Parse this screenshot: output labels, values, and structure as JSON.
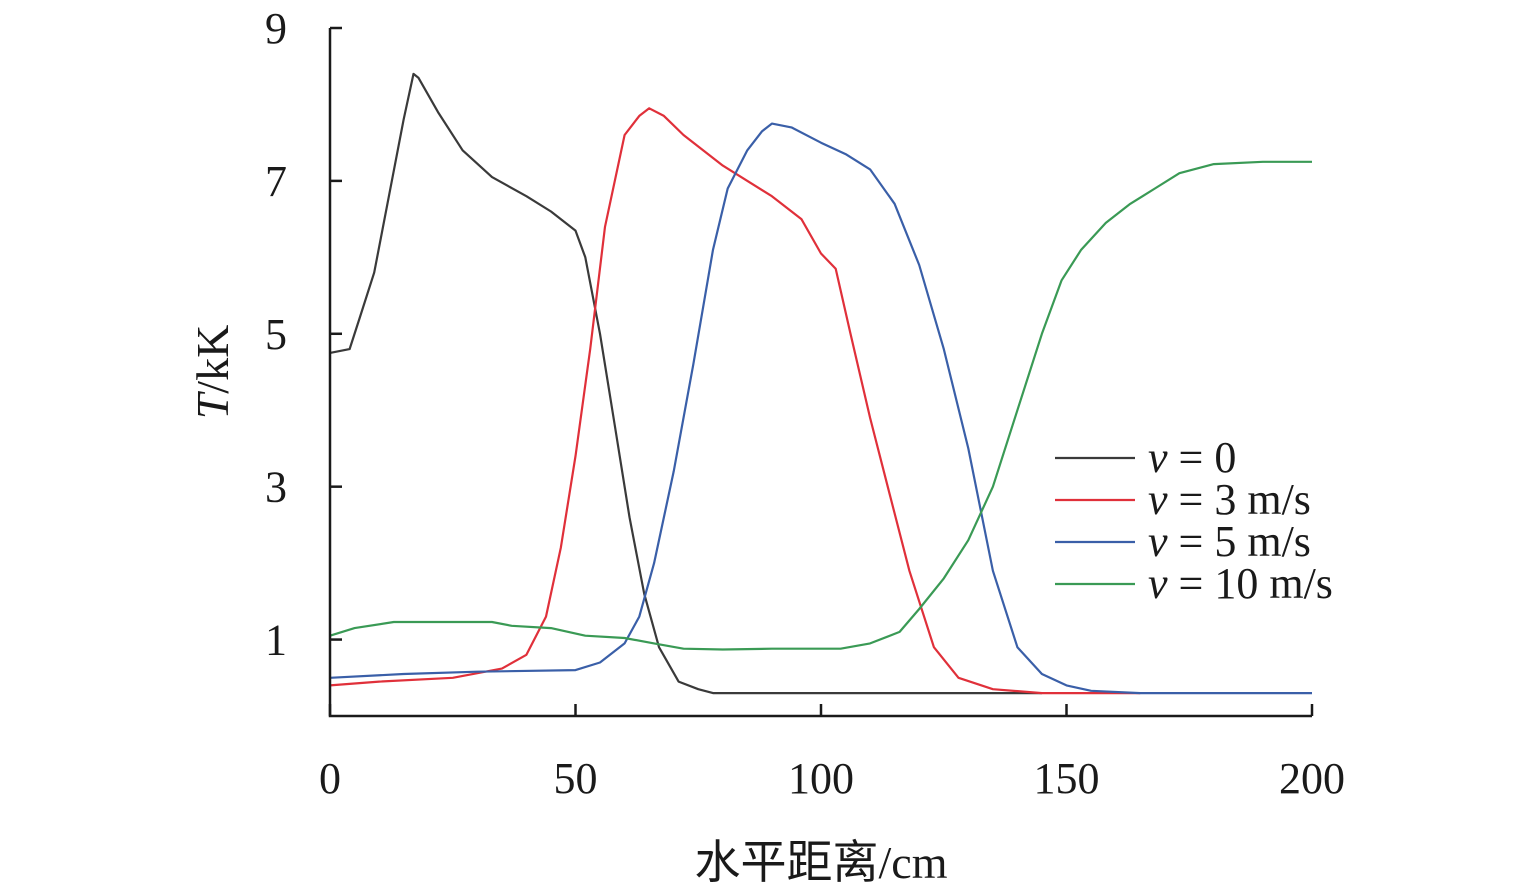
{
  "chart_data": {
    "type": "line",
    "xlabel": "水平距离/cm",
    "ylabel_var": "T",
    "ylabel_unit": "/kK",
    "xlim": [
      0,
      200
    ],
    "ylim": [
      0,
      9
    ],
    "xticks": [
      0,
      50,
      100,
      150,
      200
    ],
    "yticks": [
      1,
      3,
      5,
      7,
      9
    ],
    "legend_position": "right",
    "legend_var": "v",
    "series": [
      {
        "name": "= 0",
        "color": "#3a3a3a",
        "points": [
          [
            0,
            4.75
          ],
          [
            4,
            4.8
          ],
          [
            6,
            5.2
          ],
          [
            9,
            5.8
          ],
          [
            12,
            6.8
          ],
          [
            15,
            7.8
          ],
          [
            17,
            8.4
          ],
          [
            18,
            8.35
          ],
          [
            22,
            7.9
          ],
          [
            27,
            7.4
          ],
          [
            33,
            7.05
          ],
          [
            40,
            6.8
          ],
          [
            45,
            6.6
          ],
          [
            50,
            6.35
          ],
          [
            52,
            6.0
          ],
          [
            55,
            5.0
          ],
          [
            58,
            3.8
          ],
          [
            61,
            2.6
          ],
          [
            64,
            1.6
          ],
          [
            67,
            0.9
          ],
          [
            71,
            0.45
          ],
          [
            75,
            0.35
          ],
          [
            78,
            0.3
          ],
          [
            100,
            0.3
          ],
          [
            130,
            0.3
          ],
          [
            145,
            0.3
          ]
        ]
      },
      {
        "name": "= 3 m/s",
        "color": "#e0303a",
        "points": [
          [
            0,
            0.4
          ],
          [
            10,
            0.45
          ],
          [
            25,
            0.5
          ],
          [
            35,
            0.62
          ],
          [
            40,
            0.8
          ],
          [
            44,
            1.3
          ],
          [
            47,
            2.2
          ],
          [
            50,
            3.4
          ],
          [
            53,
            4.8
          ],
          [
            56,
            6.4
          ],
          [
            60,
            7.6
          ],
          [
            63,
            7.85
          ],
          [
            65,
            7.95
          ],
          [
            68,
            7.85
          ],
          [
            72,
            7.6
          ],
          [
            80,
            7.2
          ],
          [
            90,
            6.8
          ],
          [
            96,
            6.5
          ],
          [
            100,
            6.05
          ],
          [
            103,
            5.85
          ],
          [
            106,
            5.0
          ],
          [
            110,
            3.9
          ],
          [
            114,
            2.9
          ],
          [
            118,
            1.9
          ],
          [
            123,
            0.9
          ],
          [
            128,
            0.5
          ],
          [
            135,
            0.35
          ],
          [
            145,
            0.3
          ],
          [
            165,
            0.3
          ]
        ]
      },
      {
        "name": "= 5 m/s",
        "color": "#3a5fa8",
        "points": [
          [
            0,
            0.5
          ],
          [
            15,
            0.55
          ],
          [
            30,
            0.58
          ],
          [
            50,
            0.6
          ],
          [
            55,
            0.7
          ],
          [
            60,
            0.95
          ],
          [
            63,
            1.3
          ],
          [
            66,
            2.0
          ],
          [
            70,
            3.2
          ],
          [
            74,
            4.6
          ],
          [
            78,
            6.1
          ],
          [
            81,
            6.9
          ],
          [
            85,
            7.4
          ],
          [
            88,
            7.65
          ],
          [
            90,
            7.75
          ],
          [
            94,
            7.7
          ],
          [
            100,
            7.5
          ],
          [
            105,
            7.35
          ],
          [
            110,
            7.15
          ],
          [
            115,
            6.7
          ],
          [
            120,
            5.9
          ],
          [
            125,
            4.8
          ],
          [
            130,
            3.5
          ],
          [
            135,
            1.9
          ],
          [
            140,
            0.9
          ],
          [
            145,
            0.55
          ],
          [
            150,
            0.4
          ],
          [
            155,
            0.33
          ],
          [
            165,
            0.3
          ],
          [
            180,
            0.3
          ],
          [
            200,
            0.3
          ]
        ]
      },
      {
        "name": "= 10 m/s",
        "color": "#3a9a55",
        "points": [
          [
            0,
            1.05
          ],
          [
            5,
            1.15
          ],
          [
            13,
            1.23
          ],
          [
            20,
            1.23
          ],
          [
            33,
            1.23
          ],
          [
            37,
            1.18
          ],
          [
            45,
            1.15
          ],
          [
            52,
            1.05
          ],
          [
            60,
            1.02
          ],
          [
            66,
            0.95
          ],
          [
            72,
            0.88
          ],
          [
            80,
            0.87
          ],
          [
            90,
            0.88
          ],
          [
            104,
            0.88
          ],
          [
            110,
            0.95
          ],
          [
            116,
            1.1
          ],
          [
            120,
            1.4
          ],
          [
            125,
            1.8
          ],
          [
            130,
            2.3
          ],
          [
            135,
            3.0
          ],
          [
            140,
            4.0
          ],
          [
            145,
            5.0
          ],
          [
            149,
            5.7
          ],
          [
            153,
            6.1
          ],
          [
            158,
            6.45
          ],
          [
            163,
            6.7
          ],
          [
            168,
            6.9
          ],
          [
            173,
            7.1
          ],
          [
            180,
            7.22
          ],
          [
            190,
            7.25
          ],
          [
            200,
            7.25
          ]
        ]
      }
    ]
  }
}
